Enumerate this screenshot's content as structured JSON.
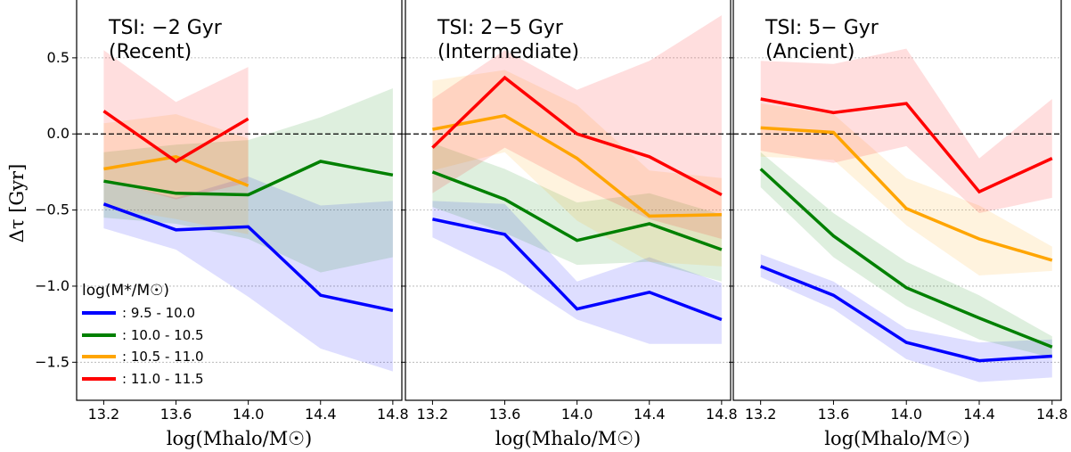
{
  "chart_data": {
    "type": "line",
    "ylabel": "Δτ [Gyr]",
    "ylim": [
      -1.75,
      0.88
    ],
    "xlim": [
      13.05,
      14.85
    ],
    "y_ticks": [
      -1.5,
      -1.0,
      -0.5,
      0.0,
      0.5
    ],
    "y_tick_labels": [
      "−1.5",
      "−1.0",
      "−0.5",
      "0.0",
      "0.5"
    ],
    "x_ticks": [
      13.2,
      13.6,
      14.0,
      14.4,
      14.8
    ],
    "x_tick_labels": [
      "13.2",
      "13.6",
      "14.0",
      "14.4",
      "14.8"
    ],
    "grid": "horizontal dotted",
    "reference_line": 0.0,
    "legend": {
      "title": "log(M*/M☉)",
      "entries": [
        {
          "label": ": 9.5 - 10.0",
          "color": "#0000ff"
        },
        {
          "label": ": 10.0 - 10.5",
          "color": "#008000"
        },
        {
          "label": ": 10.5 - 11.0",
          "color": "#ffa500"
        },
        {
          "label": ": 11.0 - 11.5",
          "color": "#ff0000"
        }
      ],
      "placement": "lower-left of first panel"
    },
    "panels": [
      {
        "title_line1": "TSI: −2 Gyr",
        "title_line2": "(Recent)",
        "xlabel": "log(Mhalo/M☉)",
        "series": [
          {
            "color": "#0000ff",
            "x": [
              13.2,
              13.6,
              14.0,
              14.4,
              14.8
            ],
            "y": [
              -0.46,
              -0.63,
              -0.61,
              -1.06,
              -1.16
            ],
            "lower": [
              -0.62,
              -0.76,
              -1.07,
              -1.41,
              -1.56
            ],
            "upper": [
              -0.31,
              -0.42,
              -0.28,
              -0.47,
              -0.44
            ]
          },
          {
            "color": "#008000",
            "x": [
              13.2,
              13.6,
              14.0,
              14.4,
              14.8
            ],
            "y": [
              -0.31,
              -0.39,
              -0.4,
              -0.18,
              -0.27
            ],
            "lower": [
              -0.55,
              -0.59,
              -0.69,
              -0.91,
              -0.81
            ],
            "upper": [
              -0.12,
              -0.07,
              -0.04,
              0.11,
              0.3
            ]
          },
          {
            "color": "#ffa500",
            "x": [
              13.2,
              13.6,
              14.0
            ],
            "y": [
              -0.23,
              -0.15,
              -0.34
            ],
            "lower": [
              -0.48,
              -0.56,
              -0.66
            ],
            "upper": [
              0.07,
              0.13,
              -0.03
            ]
          },
          {
            "color": "#ff0000",
            "x": [
              13.2,
              13.6,
              14.0
            ],
            "y": [
              0.15,
              -0.18,
              0.1
            ],
            "lower": [
              -0.3,
              -0.43,
              -0.32
            ],
            "upper": [
              0.55,
              0.21,
              0.44
            ]
          }
        ]
      },
      {
        "title_line1": "TSI: 2−5 Gyr",
        "title_line2": "(Intermediate)",
        "xlabel": "log(Mhalo/M☉)",
        "series": [
          {
            "color": "#0000ff",
            "x": [
              13.2,
              13.6,
              14.0,
              14.4,
              14.8
            ],
            "y": [
              -0.56,
              -0.66,
              -1.15,
              -1.04,
              -1.22
            ],
            "lower": [
              -0.68,
              -0.91,
              -1.22,
              -1.38,
              -1.38
            ],
            "upper": [
              -0.44,
              -0.46,
              -0.97,
              -0.81,
              -0.98
            ]
          },
          {
            "color": "#008000",
            "x": [
              13.2,
              13.6,
              14.0,
              14.4,
              14.8
            ],
            "y": [
              -0.25,
              -0.43,
              -0.7,
              -0.59,
              -0.76
            ],
            "lower": [
              -0.48,
              -0.65,
              -0.86,
              -0.84,
              -0.97
            ],
            "upper": [
              -0.06,
              -0.23,
              -0.45,
              -0.39,
              -0.53
            ]
          },
          {
            "color": "#ffa500",
            "x": [
              13.2,
              13.6,
              14.0,
              14.4,
              14.8
            ],
            "y": [
              0.03,
              0.12,
              -0.16,
              -0.54,
              -0.53
            ],
            "lower": [
              -0.24,
              -0.12,
              -0.57,
              -0.84,
              -0.87
            ],
            "upper": [
              0.35,
              0.42,
              0.19,
              -0.24,
              -0.29
            ]
          },
          {
            "color": "#ff0000",
            "x": [
              13.2,
              13.6,
              14.0,
              14.4,
              14.8
            ],
            "y": [
              -0.09,
              0.37,
              0.0,
              -0.15,
              -0.4
            ],
            "lower": [
              -0.39,
              -0.09,
              -0.34,
              -0.56,
              -0.69
            ],
            "upper": [
              0.23,
              0.55,
              0.29,
              0.48,
              0.78
            ]
          }
        ]
      },
      {
        "title_line1": "TSI: 5− Gyr",
        "title_line2": "(Ancient)",
        "xlabel": "log(Mhalo/M☉)",
        "series": [
          {
            "color": "#0000ff",
            "x": [
              13.2,
              13.6,
              14.0,
              14.4,
              14.8
            ],
            "y": [
              -0.87,
              -1.06,
              -1.37,
              -1.49,
              -1.46
            ],
            "lower": [
              -0.94,
              -1.15,
              -1.48,
              -1.63,
              -1.6
            ],
            "upper": [
              -0.79,
              -0.97,
              -1.28,
              -1.37,
              -1.35
            ]
          },
          {
            "color": "#008000",
            "x": [
              13.2,
              13.6,
              14.0,
              14.4,
              14.8
            ],
            "y": [
              -0.23,
              -0.67,
              -1.01,
              -1.21,
              -1.4
            ],
            "lower": [
              -0.35,
              -0.81,
              -1.13,
              -1.35,
              -1.47
            ],
            "upper": [
              -0.12,
              -0.52,
              -0.84,
              -1.06,
              -1.33
            ]
          },
          {
            "color": "#ffa500",
            "x": [
              13.2,
              13.6,
              14.0,
              14.4,
              14.8
            ],
            "y": [
              0.04,
              0.01,
              -0.49,
              -0.69,
              -0.83
            ],
            "lower": [
              -0.15,
              -0.17,
              -0.6,
              -0.93,
              -0.9
            ],
            "upper": [
              0.2,
              0.13,
              -0.29,
              -0.47,
              -0.74
            ]
          },
          {
            "color": "#ff0000",
            "x": [
              13.2,
              13.6,
              14.0,
              14.4,
              14.8
            ],
            "y": [
              0.23,
              0.14,
              0.2,
              -0.38,
              -0.16
            ],
            "lower": [
              -0.11,
              -0.19,
              -0.08,
              -0.52,
              -0.42
            ],
            "upper": [
              0.48,
              0.46,
              0.56,
              -0.16,
              0.23
            ]
          }
        ]
      }
    ]
  }
}
